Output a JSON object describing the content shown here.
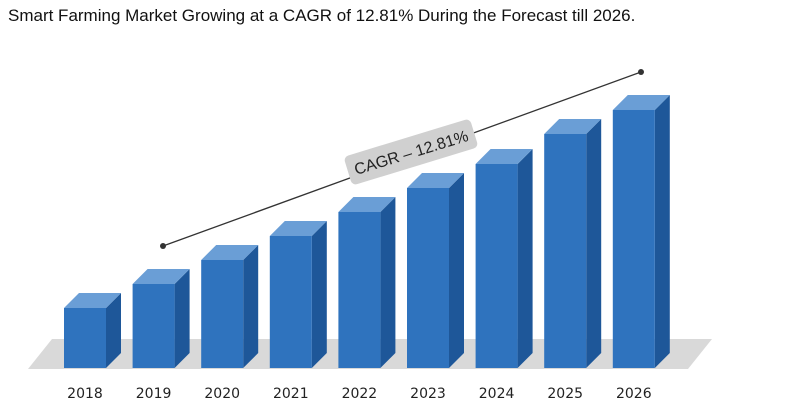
{
  "title": "Smart Farming Market Growing at a CAGR of 12.81% During the Forecast till 2026.",
  "colors": {
    "bar_front": "#2f73be",
    "bar_top": "#6a9ed6",
    "bar_side": "#1e5799",
    "floor": "#d9d9d9",
    "trend_line": "#333333",
    "label_box": "#d0d0d0"
  },
  "chart_data": {
    "type": "bar",
    "title": "Smart Farming Market Growing at a CAGR of 12.81% During the Forecast till 2026.",
    "categories": [
      "2018",
      "2019",
      "2020",
      "2021",
      "2022",
      "2023",
      "2024",
      "2025",
      "2026"
    ],
    "values": [
      1.0,
      1.4,
      1.8,
      2.2,
      2.6,
      3.0,
      3.4,
      3.9,
      4.3
    ],
    "annotation": "CAGR – 12.81%",
    "xlabel": "",
    "ylabel": "",
    "grid": false,
    "legend": "none",
    "y_axis_visible": false
  }
}
